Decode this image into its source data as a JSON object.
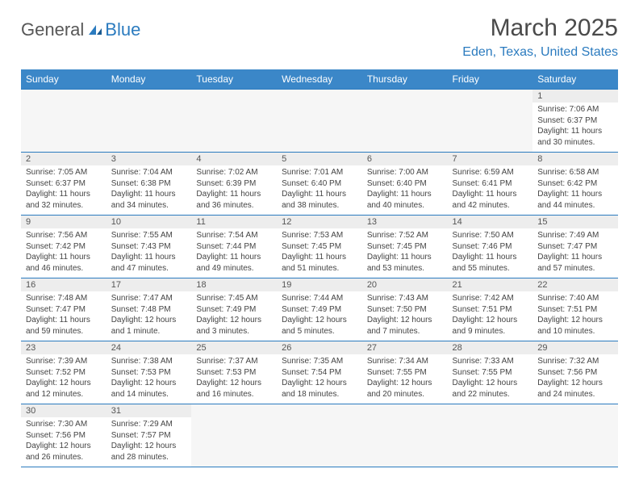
{
  "logo": {
    "part1": "General",
    "part2": "Blue"
  },
  "title": "March 2025",
  "location": "Eden, Texas, United States",
  "colors": {
    "accent": "#3b87c8",
    "accent_text": "#2b7bbf",
    "header_text": "#4a4a4a",
    "cell_header_bg": "#ededed",
    "background": "#ffffff"
  },
  "day_headers": [
    "Sunday",
    "Monday",
    "Tuesday",
    "Wednesday",
    "Thursday",
    "Friday",
    "Saturday"
  ],
  "weeks": [
    [
      {
        "empty": true
      },
      {
        "empty": true
      },
      {
        "empty": true
      },
      {
        "empty": true
      },
      {
        "empty": true
      },
      {
        "empty": true
      },
      {
        "n": "1",
        "sr": "Sunrise: 7:06 AM",
        "ss": "Sunset: 6:37 PM",
        "d1": "Daylight: 11 hours",
        "d2": "and 30 minutes."
      }
    ],
    [
      {
        "n": "2",
        "sr": "Sunrise: 7:05 AM",
        "ss": "Sunset: 6:37 PM",
        "d1": "Daylight: 11 hours",
        "d2": "and 32 minutes."
      },
      {
        "n": "3",
        "sr": "Sunrise: 7:04 AM",
        "ss": "Sunset: 6:38 PM",
        "d1": "Daylight: 11 hours",
        "d2": "and 34 minutes."
      },
      {
        "n": "4",
        "sr": "Sunrise: 7:02 AM",
        "ss": "Sunset: 6:39 PM",
        "d1": "Daylight: 11 hours",
        "d2": "and 36 minutes."
      },
      {
        "n": "5",
        "sr": "Sunrise: 7:01 AM",
        "ss": "Sunset: 6:40 PM",
        "d1": "Daylight: 11 hours",
        "d2": "and 38 minutes."
      },
      {
        "n": "6",
        "sr": "Sunrise: 7:00 AM",
        "ss": "Sunset: 6:40 PM",
        "d1": "Daylight: 11 hours",
        "d2": "and 40 minutes."
      },
      {
        "n": "7",
        "sr": "Sunrise: 6:59 AM",
        "ss": "Sunset: 6:41 PM",
        "d1": "Daylight: 11 hours",
        "d2": "and 42 minutes."
      },
      {
        "n": "8",
        "sr": "Sunrise: 6:58 AM",
        "ss": "Sunset: 6:42 PM",
        "d1": "Daylight: 11 hours",
        "d2": "and 44 minutes."
      }
    ],
    [
      {
        "n": "9",
        "sr": "Sunrise: 7:56 AM",
        "ss": "Sunset: 7:42 PM",
        "d1": "Daylight: 11 hours",
        "d2": "and 46 minutes."
      },
      {
        "n": "10",
        "sr": "Sunrise: 7:55 AM",
        "ss": "Sunset: 7:43 PM",
        "d1": "Daylight: 11 hours",
        "d2": "and 47 minutes."
      },
      {
        "n": "11",
        "sr": "Sunrise: 7:54 AM",
        "ss": "Sunset: 7:44 PM",
        "d1": "Daylight: 11 hours",
        "d2": "and 49 minutes."
      },
      {
        "n": "12",
        "sr": "Sunrise: 7:53 AM",
        "ss": "Sunset: 7:45 PM",
        "d1": "Daylight: 11 hours",
        "d2": "and 51 minutes."
      },
      {
        "n": "13",
        "sr": "Sunrise: 7:52 AM",
        "ss": "Sunset: 7:45 PM",
        "d1": "Daylight: 11 hours",
        "d2": "and 53 minutes."
      },
      {
        "n": "14",
        "sr": "Sunrise: 7:50 AM",
        "ss": "Sunset: 7:46 PM",
        "d1": "Daylight: 11 hours",
        "d2": "and 55 minutes."
      },
      {
        "n": "15",
        "sr": "Sunrise: 7:49 AM",
        "ss": "Sunset: 7:47 PM",
        "d1": "Daylight: 11 hours",
        "d2": "and 57 minutes."
      }
    ],
    [
      {
        "n": "16",
        "sr": "Sunrise: 7:48 AM",
        "ss": "Sunset: 7:47 PM",
        "d1": "Daylight: 11 hours",
        "d2": "and 59 minutes."
      },
      {
        "n": "17",
        "sr": "Sunrise: 7:47 AM",
        "ss": "Sunset: 7:48 PM",
        "d1": "Daylight: 12 hours",
        "d2": "and 1 minute."
      },
      {
        "n": "18",
        "sr": "Sunrise: 7:45 AM",
        "ss": "Sunset: 7:49 PM",
        "d1": "Daylight: 12 hours",
        "d2": "and 3 minutes."
      },
      {
        "n": "19",
        "sr": "Sunrise: 7:44 AM",
        "ss": "Sunset: 7:49 PM",
        "d1": "Daylight: 12 hours",
        "d2": "and 5 minutes."
      },
      {
        "n": "20",
        "sr": "Sunrise: 7:43 AM",
        "ss": "Sunset: 7:50 PM",
        "d1": "Daylight: 12 hours",
        "d2": "and 7 minutes."
      },
      {
        "n": "21",
        "sr": "Sunrise: 7:42 AM",
        "ss": "Sunset: 7:51 PM",
        "d1": "Daylight: 12 hours",
        "d2": "and 9 minutes."
      },
      {
        "n": "22",
        "sr": "Sunrise: 7:40 AM",
        "ss": "Sunset: 7:51 PM",
        "d1": "Daylight: 12 hours",
        "d2": "and 10 minutes."
      }
    ],
    [
      {
        "n": "23",
        "sr": "Sunrise: 7:39 AM",
        "ss": "Sunset: 7:52 PM",
        "d1": "Daylight: 12 hours",
        "d2": "and 12 minutes."
      },
      {
        "n": "24",
        "sr": "Sunrise: 7:38 AM",
        "ss": "Sunset: 7:53 PM",
        "d1": "Daylight: 12 hours",
        "d2": "and 14 minutes."
      },
      {
        "n": "25",
        "sr": "Sunrise: 7:37 AM",
        "ss": "Sunset: 7:53 PM",
        "d1": "Daylight: 12 hours",
        "d2": "and 16 minutes."
      },
      {
        "n": "26",
        "sr": "Sunrise: 7:35 AM",
        "ss": "Sunset: 7:54 PM",
        "d1": "Daylight: 12 hours",
        "d2": "and 18 minutes."
      },
      {
        "n": "27",
        "sr": "Sunrise: 7:34 AM",
        "ss": "Sunset: 7:55 PM",
        "d1": "Daylight: 12 hours",
        "d2": "and 20 minutes."
      },
      {
        "n": "28",
        "sr": "Sunrise: 7:33 AM",
        "ss": "Sunset: 7:55 PM",
        "d1": "Daylight: 12 hours",
        "d2": "and 22 minutes."
      },
      {
        "n": "29",
        "sr": "Sunrise: 7:32 AM",
        "ss": "Sunset: 7:56 PM",
        "d1": "Daylight: 12 hours",
        "d2": "and 24 minutes."
      }
    ],
    [
      {
        "n": "30",
        "sr": "Sunrise: 7:30 AM",
        "ss": "Sunset: 7:56 PM",
        "d1": "Daylight: 12 hours",
        "d2": "and 26 minutes."
      },
      {
        "n": "31",
        "sr": "Sunrise: 7:29 AM",
        "ss": "Sunset: 7:57 PM",
        "d1": "Daylight: 12 hours",
        "d2": "and 28 minutes."
      },
      {
        "empty": true
      },
      {
        "empty": true
      },
      {
        "empty": true
      },
      {
        "empty": true
      },
      {
        "empty": true
      }
    ]
  ]
}
